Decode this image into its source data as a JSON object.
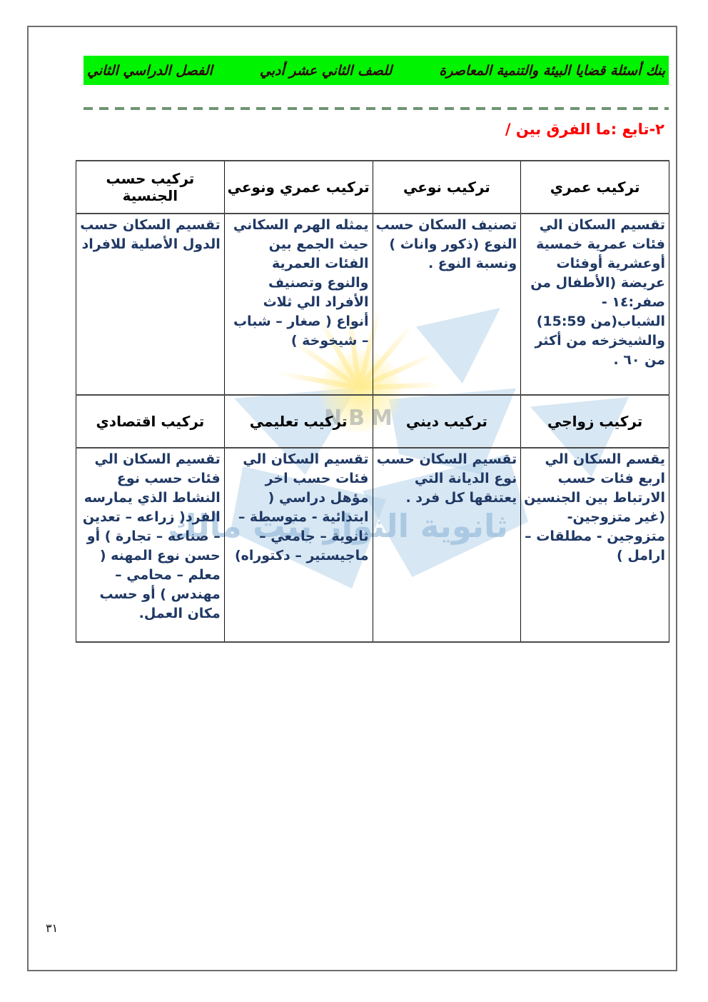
{
  "header": {
    "segments": [
      "بنك أسئلة قضايا البيئة والتنمية المعاصرة",
      "للصف الثاني عشر أدبي",
      "الفصل الدراسي الثاني"
    ]
  },
  "section_heading": "٢-تابع :ما الفرق بين /",
  "table": {
    "sections": [
      {
        "headers": [
          "تركيب عمري",
          "تركيب نوعي",
          "تركيب عمري ونوعي",
          "تركيب حسب الجنسية"
        ],
        "cells": [
          "تقسيم السكان الي فئات عمرية خمسية أوعشرية أوفئات عريضة (الأطفال من صفر:١٤ - الشباب(من 15:59) والشيخزخه من أكثر من ٦٠ .",
          "تصنيف السكان حسب النوع (ذكور واناث ) ونسبة النوع .",
          "يمثله الهرم السكاني حيث الجمع بين الفئات العمرية والنوع وتصنيف الأفراد الي ثلاث أنواع ( صغار – شباب – شيخوخة )",
          "تقسيم السكان حسب الدول  الأصلية للافراد"
        ]
      },
      {
        "headers": [
          "تركيب زواجي",
          "تركيب ديني",
          "تركيب تعليمي",
          "تركيب اقتصادي"
        ],
        "cells": [
          "يقسم السكان الي اربع فئات حسب الارتباط بين الجنسين (غير متزوجين- متزوجين - مطلقات – ارامل )",
          "تقسيم السكان حسب نوع الديانة التي يعتنقها كل فرد .",
          "تقسيم السكان الي فئات حسب اخر مؤهل دراسي ( ابتدائية - متوسطة – ثانوية – جامعي – ماجيستير – دكتوراه)",
          "تقسيم السكان الي فئات حسب نوع النشاط الذي يمارسه الفرد( زراعه – تعدين – صناعه – تجارة ) أو حسن نوع المهنه ( معلم – محامي – مهندس ) أو حسب مكان العمل."
        ]
      }
    ]
  },
  "watermark": {
    "logo_text": "NBM",
    "school_name": "ثانوية النوار بنت مالك"
  },
  "page": {
    "number": "٣١"
  },
  "colors": {
    "header_bg": "#00f300",
    "heading_red": "#fe0000",
    "cell_text_navy": "#1f3864",
    "dashed_line_green": "#6f9472",
    "page_border_gray": "#6e6e6e",
    "watermark_blue": "#b7d4ea",
    "watermark_sun_yellow": "#ffee96"
  }
}
